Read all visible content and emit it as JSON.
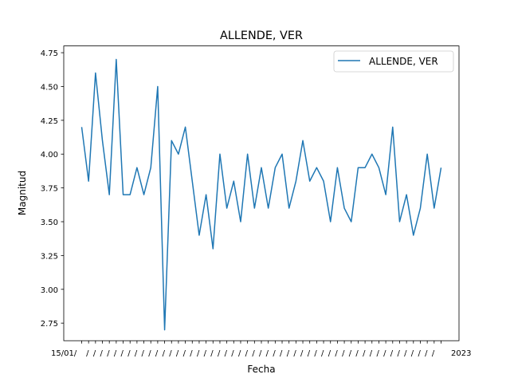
{
  "chart_data": {
    "type": "line",
    "title": "ALLENDE, VER",
    "xlabel": "Fecha",
    "ylabel": "Magnitud",
    "ylim": [
      2.62,
      4.8
    ],
    "yticks": [
      "2.75",
      "3.00",
      "3.25",
      "3.50",
      "3.75",
      "4.00",
      "4.25",
      "4.50",
      "4.75"
    ],
    "ytick_values": [
      2.75,
      3.0,
      3.25,
      3.5,
      3.75,
      4.0,
      4.25,
      4.5,
      4.75
    ],
    "x_tick_text_start": "15/01/",
    "x_tick_text_end": "2023",
    "legend": "top-right",
    "grid": false,
    "color": "#1f77b4",
    "series": [
      {
        "name": "ALLENDE, VER",
        "values": [
          4.2,
          3.8,
          4.6,
          4.1,
          3.7,
          4.7,
          3.7,
          3.7,
          3.9,
          3.7,
          3.9,
          4.5,
          2.7,
          4.1,
          4.0,
          4.2,
          3.8,
          3.4,
          3.7,
          3.3,
          4.0,
          3.6,
          3.8,
          3.5,
          4.0,
          3.6,
          3.9,
          3.6,
          3.9,
          4.0,
          3.6,
          3.8,
          4.1,
          3.8,
          3.9,
          3.8,
          3.5,
          3.9,
          3.6,
          3.5,
          3.9,
          3.9,
          4.0,
          3.9,
          3.7,
          4.2,
          3.5,
          3.7,
          3.4,
          3.6,
          4.0,
          3.6,
          3.9
        ]
      }
    ]
  }
}
